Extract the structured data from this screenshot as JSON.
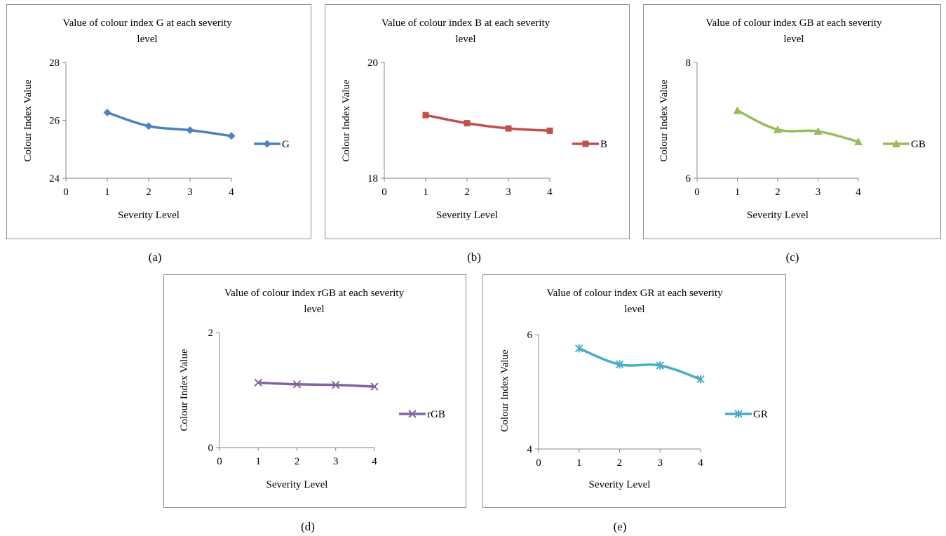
{
  "chart_data": [
    {
      "type": "line",
      "title": "Value of colour index G at each severity level",
      "title_lines": [
        "Value of colour index G at each severity",
        "level"
      ],
      "xlabel": "Severity Level",
      "ylabel": "Colour Index Value",
      "x_ticks": [
        "0",
        "1",
        "2",
        "3",
        "4"
      ],
      "y_ticks": [
        "24",
        "26",
        "28"
      ],
      "xlim": [
        0,
        4
      ],
      "ylim": [
        24,
        28
      ],
      "grid": false,
      "legend_position": "right",
      "x": [
        1,
        2,
        3,
        4
      ],
      "series": [
        {
          "name": "G",
          "values": [
            26.27,
            25.8,
            25.66,
            25.46
          ],
          "color": "#4F81BD",
          "marker": "diamond"
        }
      ],
      "caption": "(a)"
    },
    {
      "type": "line",
      "title": "Value of colour index B at each severity level",
      "title_lines": [
        "Value of colour index B at each severity",
        "level"
      ],
      "xlabel": "Severity Level",
      "ylabel": "Colour Index Value",
      "x_ticks": [
        "0",
        "1",
        "2",
        "3",
        "4"
      ],
      "y_ticks": [
        "18",
        "20"
      ],
      "xlim": [
        0,
        4
      ],
      "ylim": [
        18,
        20
      ],
      "grid": false,
      "legend_position": "right",
      "x": [
        1,
        2,
        3,
        4
      ],
      "series": [
        {
          "name": "B",
          "values": [
            19.09,
            18.95,
            18.86,
            18.82
          ],
          "color": "#C0504D",
          "marker": "square"
        }
      ],
      "caption": "(b)"
    },
    {
      "type": "line",
      "title": "Value of colour index GB at each severity level",
      "title_lines": [
        "Value of colour index GB at each severity",
        "level"
      ],
      "xlabel": "Severity Level",
      "ylabel": "Colour Index Value",
      "x_ticks": [
        "0",
        "1",
        "2",
        "3",
        "4"
      ],
      "y_ticks": [
        "6",
        "8"
      ],
      "xlim": [
        0,
        4
      ],
      "ylim": [
        6,
        8
      ],
      "grid": false,
      "legend_position": "right",
      "x": [
        1,
        2,
        3,
        4
      ],
      "series": [
        {
          "name": "GB",
          "values": [
            7.17,
            6.84,
            6.81,
            6.63
          ],
          "color": "#9BBB59",
          "marker": "triangle"
        }
      ],
      "caption": "(c)"
    },
    {
      "type": "line",
      "title": "Value of colour index rGB at each severity level",
      "title_lines": [
        "Value of colour index rGB at each severity",
        "level"
      ],
      "xlabel": "Severity Level",
      "ylabel": "Colour Index Value",
      "x_ticks": [
        "0",
        "1",
        "2",
        "3",
        "4"
      ],
      "y_ticks": [
        "0",
        "2"
      ],
      "xlim": [
        0,
        4
      ],
      "ylim": [
        0,
        2
      ],
      "grid": false,
      "legend_position": "right",
      "x": [
        1,
        2,
        3,
        4
      ],
      "series": [
        {
          "name": "rGB",
          "values": [
            1.13,
            1.1,
            1.09,
            1.06
          ],
          "color": "#8064A2",
          "marker": "x"
        }
      ],
      "caption": "(d)"
    },
    {
      "type": "line",
      "title": "Value of colour index GR at each severity level",
      "title_lines": [
        "Value of colour index GR at each severity",
        "level"
      ],
      "xlabel": "Severity Level",
      "ylabel": "Colour Index Value",
      "x_ticks": [
        "0",
        "1",
        "2",
        "3",
        "4"
      ],
      "y_ticks": [
        "4",
        "6"
      ],
      "xlim": [
        0,
        4
      ],
      "ylim": [
        4,
        6
      ],
      "grid": false,
      "legend_position": "right",
      "x": [
        1,
        2,
        3,
        4
      ],
      "series": [
        {
          "name": "GR",
          "values": [
            5.76,
            5.48,
            5.46,
            5.22
          ],
          "color": "#4BACC6",
          "marker": "asterisk"
        }
      ],
      "caption": "(e)"
    }
  ]
}
